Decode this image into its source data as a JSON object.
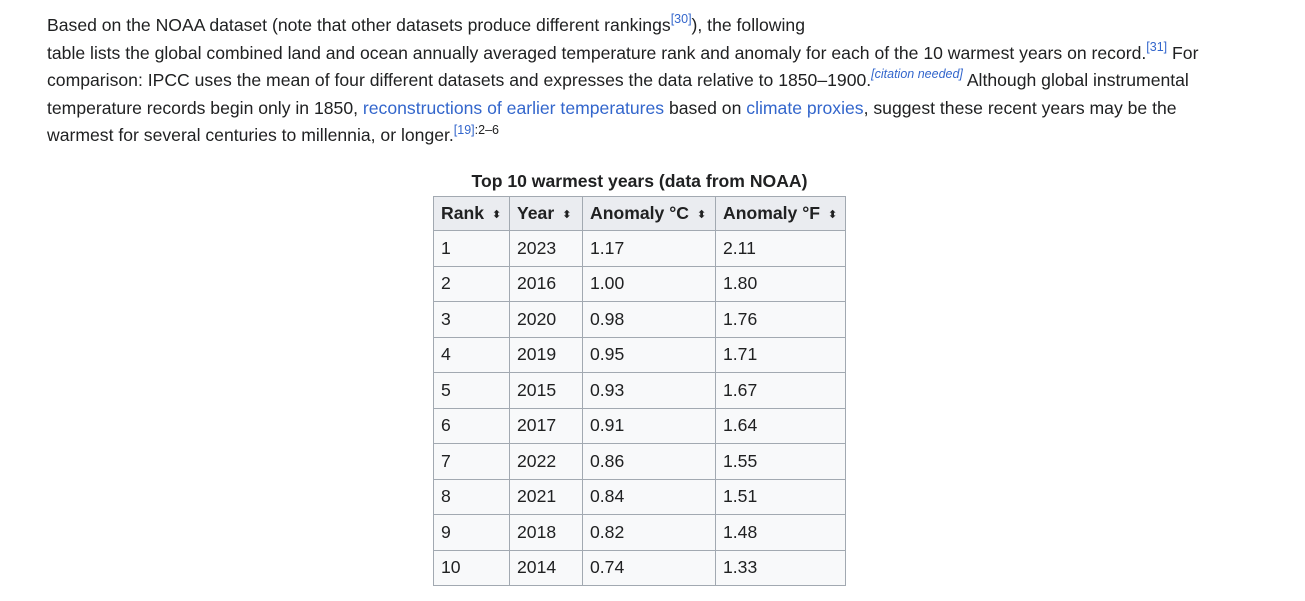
{
  "paragraph": {
    "line1": {
      "before": "Based on the NOAA dataset (note that other datasets produce different rankings",
      "ref": "[30]",
      "after": "), the following"
    },
    "line2": {
      "text": "table lists the global combined land and ocean annually averaged temperature rank and anomaly for each of the 10 warmest years on record.",
      "ref": "[31]",
      "after": " For"
    },
    "line3": {
      "text": "comparison: IPCC uses the mean of four different datasets and expresses the data relative to 1850–1900.",
      "citation_needed": "[citation needed]",
      "after": " Although global instrumental"
    },
    "line4": {
      "before": "temperature records begin only in 1850, ",
      "link1": "reconstructions of earlier temperatures",
      "middle": " based on ",
      "link2": "climate proxies",
      "after": ", suggest these recent years may be the"
    },
    "line5": {
      "text": "warmest for several centuries to millennia, or longer.",
      "ref": "[19]",
      "pages": ":2–6"
    }
  },
  "table": {
    "caption": "Top 10 warmest years (data from NOAA)",
    "headers": [
      "Rank",
      "Year",
      "Anomaly °C",
      "Anomaly °F"
    ],
    "sort_icon": "⬍",
    "rows": [
      [
        "1",
        "2023",
        "1.17",
        "2.11"
      ],
      [
        "2",
        "2016",
        "1.00",
        "1.80"
      ],
      [
        "3",
        "2020",
        "0.98",
        "1.76"
      ],
      [
        "4",
        "2019",
        "0.95",
        "1.71"
      ],
      [
        "5",
        "2015",
        "0.93",
        "1.67"
      ],
      [
        "6",
        "2017",
        "0.91",
        "1.64"
      ],
      [
        "7",
        "2022",
        "0.86",
        "1.55"
      ],
      [
        "8",
        "2021",
        "0.84",
        "1.51"
      ],
      [
        "9",
        "2018",
        "0.82",
        "1.48"
      ],
      [
        "10",
        "2014",
        "0.74",
        "1.33"
      ]
    ]
  },
  "colors": {
    "link": "#3366cc",
    "text": "#202122",
    "header_bg": "#eaecf0",
    "cell_bg": "#f8f9fa",
    "border": "#a2a9b1"
  }
}
